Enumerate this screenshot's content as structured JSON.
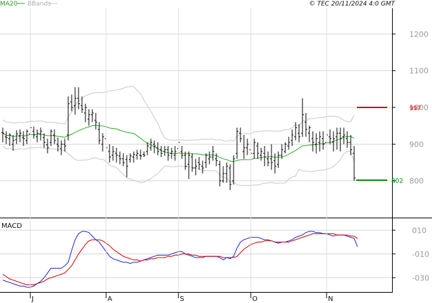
{
  "chart_data": [
    {
      "type": "candlestick",
      "legend": [
        "MA20",
        "BBands"
      ],
      "legend_placement": "top-left",
      "credit": "© TEC 20/11/2024 4:0 GMT",
      "y_ticks": [
        "1200",
        "1100",
        "1000",
        "900",
        "800"
      ],
      "ylim": [
        700,
        1270
      ],
      "x_ticks": [
        "J",
        "A",
        "S",
        "O",
        "N"
      ],
      "x_tick_index": [
        8,
        30,
        51,
        72,
        94
      ],
      "grid": true,
      "annotations": [
        {
          "label": "997",
          "value": 1000,
          "color": "#cc0000"
        },
        {
          "label": "802",
          "value": 802,
          "color": "#008800"
        }
      ],
      "colors": {
        "ma20": "#2aaa2a",
        "bbands": "#c8c8c8",
        "bars": "#000000"
      },
      "ohlc": [
        [
          932,
          945,
          905,
          930
        ],
        [
          920,
          935,
          900,
          918
        ],
        [
          915,
          930,
          895,
          925
        ],
        [
          900,
          925,
          882,
          910
        ],
        [
          912,
          938,
          900,
          928
        ],
        [
          922,
          940,
          905,
          930
        ],
        [
          918,
          935,
          895,
          915
        ],
        [
          910,
          940,
          900,
          935
        ],
        [
          928,
          955,
          915,
          945
        ],
        [
          935,
          948,
          915,
          925
        ],
        [
          920,
          940,
          905,
          930
        ],
        [
          928,
          945,
          910,
          935
        ],
        [
          918,
          930,
          890,
          905
        ],
        [
          898,
          915,
          875,
          890
        ],
        [
          905,
          940,
          895,
          935
        ],
        [
          925,
          940,
          900,
          910
        ],
        [
          900,
          918,
          880,
          895
        ],
        [
          888,
          910,
          870,
          900
        ],
        [
          900,
          915,
          880,
          895
        ],
        [
          925,
          1030,
          910,
          1010
        ],
        [
          1015,
          1035,
          990,
          1000
        ],
        [
          1005,
          1055,
          980,
          1025
        ],
        [
          1025,
          1055,
          995,
          1010
        ],
        [
          1005,
          1030,
          985,
          995
        ],
        [
          985,
          1010,
          960,
          1000
        ],
        [
          968,
          995,
          950,
          980
        ],
        [
          980,
          995,
          960,
          985
        ],
        [
          965,
          985,
          940,
          960
        ],
        [
          940,
          960,
          900,
          910
        ],
        [
          900,
          930,
          880,
          920
        ],
        [
          915,
          925,
          860,
          890
        ],
        [
          880,
          900,
          850,
          865
        ],
        [
          870,
          895,
          855,
          880
        ],
        [
          875,
          890,
          850,
          870
        ],
        [
          868,
          880,
          845,
          860
        ],
        [
          860,
          875,
          840,
          850
        ],
        [
          858,
          870,
          810,
          840
        ],
        [
          858,
          875,
          850,
          868
        ],
        [
          865,
          880,
          850,
          872
        ],
        [
          870,
          885,
          858,
          875
        ],
        [
          870,
          885,
          858,
          868
        ],
        [
          872,
          880,
          865,
          870
        ],
        [
          880,
          905,
          870,
          895
        ],
        [
          890,
          915,
          882,
          905
        ],
        [
          900,
          910,
          875,
          895
        ],
        [
          890,
          905,
          870,
          880
        ],
        [
          885,
          895,
          865,
          875
        ],
        [
          880,
          895,
          868,
          885
        ],
        [
          885,
          895,
          855,
          870
        ],
        [
          875,
          890,
          860,
          880
        ],
        [
          870,
          895,
          855,
          880
        ],
        [
          888,
          912,
          878,
          905
        ],
        [
          880,
          895,
          860,
          870
        ],
        [
          870,
          880,
          830,
          840
        ],
        [
          845,
          880,
          805,
          870
        ],
        [
          865,
          875,
          825,
          835
        ],
        [
          835,
          860,
          815,
          840
        ],
        [
          850,
          865,
          830,
          845
        ],
        [
          840,
          855,
          820,
          835
        ],
        [
          850,
          875,
          835,
          870
        ],
        [
          860,
          880,
          845,
          865
        ],
        [
          865,
          895,
          855,
          880
        ],
        [
          860,
          875,
          840,
          855
        ],
        [
          845,
          855,
          785,
          800
        ],
        [
          800,
          840,
          795,
          820
        ],
        [
          820,
          850,
          795,
          840
        ],
        [
          835,
          845,
          775,
          790
        ],
        [
          800,
          870,
          790,
          860
        ],
        [
          875,
          945,
          860,
          935
        ],
        [
          930,
          945,
          905,
          915
        ],
        [
          880,
          925,
          860,
          890
        ],
        [
          890,
          915,
          870,
          900
        ],
        [
          885,
          905,
          860,
          875
        ],
        [
          875,
          915,
          860,
          905
        ],
        [
          895,
          905,
          860,
          875
        ],
        [
          870,
          890,
          855,
          880
        ],
        [
          875,
          895,
          840,
          865
        ],
        [
          860,
          880,
          840,
          850
        ],
        [
          860,
          900,
          830,
          850
        ],
        [
          855,
          875,
          820,
          840
        ],
        [
          845,
          880,
          835,
          870
        ],
        [
          870,
          900,
          860,
          885
        ],
        [
          880,
          905,
          875,
          900
        ],
        [
          895,
          920,
          885,
          905
        ],
        [
          910,
          940,
          895,
          925
        ],
        [
          920,
          960,
          910,
          945
        ],
        [
          930,
          955,
          905,
          920
        ],
        [
          930,
          1025,
          920,
          980
        ],
        [
          960,
          985,
          920,
          940
        ],
        [
          930,
          950,
          905,
          945
        ],
        [
          915,
          935,
          880,
          905
        ],
        [
          900,
          930,
          875,
          915
        ],
        [
          905,
          935,
          880,
          920
        ],
        [
          915,
          935,
          885,
          900
        ],
        [
          905,
          935,
          890,
          925
        ],
        [
          920,
          940,
          900,
          915
        ],
        [
          905,
          935,
          880,
          915
        ],
        [
          920,
          945,
          885,
          930
        ],
        [
          930,
          945,
          880,
          915
        ],
        [
          920,
          945,
          900,
          925
        ],
        [
          915,
          935,
          890,
          905
        ],
        [
          905,
          925,
          870,
          885
        ],
        [
          875,
          895,
          800,
          808
        ]
      ]
    },
    {
      "type": "line",
      "title": "MACD",
      "y_ticks": [
        "010",
        "-010",
        "-030"
      ],
      "ylim": [
        -42,
        20
      ],
      "grid": true,
      "colors": {
        "macd": "#2222cc",
        "signal": "#cc0000"
      },
      "series": [
        {
          "values": [
            -32,
            -33,
            -34,
            -35,
            -36,
            -37,
            -37,
            -38,
            -38,
            -37,
            -35,
            -33,
            -30,
            -26,
            -22,
            -22,
            -22,
            -22,
            -20,
            -17,
            -7,
            2,
            7,
            9,
            9,
            8,
            5,
            2,
            0,
            -4,
            -8,
            -12,
            -14,
            -15,
            -16,
            -17,
            -17,
            -18,
            -17,
            -17,
            -16,
            -15,
            -14,
            -13,
            -12,
            -11,
            -11,
            -11,
            -11,
            -10,
            -9,
            -8,
            -8,
            -10,
            -11,
            -12,
            -13,
            -13,
            -13,
            -12,
            -12,
            -12,
            -12,
            -13,
            -15,
            -13,
            -14,
            -12,
            -5,
            0,
            2,
            3,
            4,
            4,
            4,
            3,
            2,
            2,
            1,
            0,
            -1,
            0,
            0,
            1,
            2,
            4,
            5,
            6,
            8,
            9,
            9,
            8,
            8,
            7,
            7,
            6,
            5,
            6,
            6,
            6,
            5,
            4,
            3,
            -4
          ]
        },
        {
          "values": [
            -27,
            -29,
            -31,
            -32,
            -33,
            -34,
            -35,
            -36,
            -36,
            -36,
            -35,
            -34,
            -33,
            -31,
            -30,
            -29,
            -28,
            -27,
            -26,
            -23,
            -20,
            -15,
            -10,
            -6,
            -2,
            1,
            2,
            2,
            2,
            1,
            -1,
            -3,
            -6,
            -8,
            -10,
            -12,
            -13,
            -14,
            -15,
            -15,
            -16,
            -15,
            -15,
            -14,
            -14,
            -13,
            -13,
            -13,
            -12,
            -12,
            -11,
            -11,
            -10,
            -10,
            -10,
            -11,
            -11,
            -12,
            -12,
            -12,
            -12,
            -12,
            -12,
            -12,
            -13,
            -13,
            -13,
            -13,
            -12,
            -9,
            -6,
            -4,
            -2,
            -1,
            0,
            0,
            1,
            1,
            1,
            0,
            0,
            0,
            0,
            0,
            1,
            2,
            3,
            4,
            5,
            6,
            7,
            7,
            7,
            7,
            7,
            7,
            7,
            6,
            6,
            6,
            6,
            5,
            5,
            3
          ]
        }
      ]
    }
  ]
}
